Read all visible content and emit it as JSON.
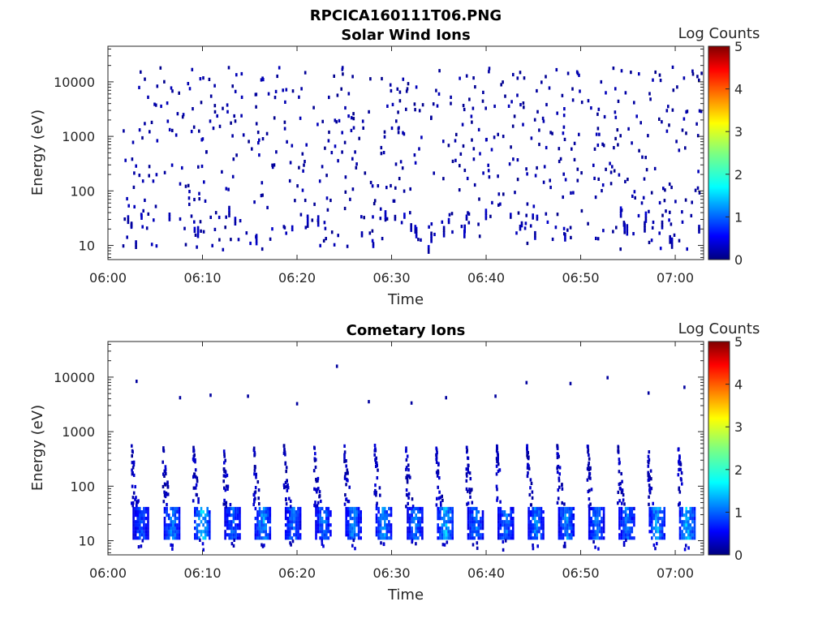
{
  "figure_title": "RPCICA160111T06.PNG",
  "colorbar": {
    "label": "Log Counts",
    "ticks": [
      "0",
      "1",
      "2",
      "3",
      "4",
      "5"
    ],
    "range": [
      0,
      5
    ],
    "colormap": [
      "#00007f",
      "#0000ff",
      "#007fff",
      "#00ffff",
      "#7fff7f",
      "#ffff00",
      "#ff7f00",
      "#ff0000",
      "#7f0000"
    ]
  },
  "chart_data": [
    {
      "type": "heatmap",
      "title": "Solar Wind Ions",
      "xlabel": "Time",
      "ylabel": "Energy (eV)",
      "x_range_min": [
        0,
        63
      ],
      "y_range_ev": [
        5.5,
        45000
      ],
      "y_scale": "log",
      "xticks": [
        "06:00",
        "06:10",
        "06:20",
        "06:30",
        "06:40",
        "06:50",
        "07:00"
      ],
      "xtick_minutes": [
        0,
        10,
        20,
        30,
        40,
        50,
        60
      ],
      "yticks": [
        "10",
        "100",
        "1000",
        "10000"
      ],
      "ytick_values": [
        10,
        100,
        1000,
        10000
      ],
      "data_start_min": 1.5,
      "data_end_min": 62.7,
      "pattern": "sparse scattered low counts (log counts ~0-0.3) across 8 eV - 20000 eV; denser vertical streaks near 10-40 eV",
      "seed": 7
    },
    {
      "type": "heatmap",
      "title": "Cometary Ions",
      "xlabel": "Time",
      "ylabel": "Energy (eV)",
      "x_range_min": [
        0,
        63
      ],
      "y_range_ev": [
        5.5,
        45000
      ],
      "y_scale": "log",
      "xticks": [
        "06:00",
        "06:10",
        "06:20",
        "06:30",
        "06:40",
        "06:50",
        "07:00"
      ],
      "xtick_minutes": [
        0,
        10,
        20,
        30,
        40,
        50,
        60
      ],
      "yticks": [
        "10",
        "100",
        "1000",
        "10000"
      ],
      "ytick_values": [
        10,
        100,
        1000,
        10000
      ],
      "burst_period_min": 3.2,
      "burst_start_min": [
        2.6,
        5.9,
        9.1,
        12.3,
        15.5,
        18.7,
        21.9,
        25.1,
        28.3,
        31.6,
        34.8,
        38.0,
        41.2,
        44.4,
        47.6,
        50.8,
        54.0,
        57.2,
        60.4
      ],
      "burst_peak_log_counts": [
        1.3,
        1.6,
        2.0,
        1.4,
        1.7,
        1.5,
        1.5,
        1.6,
        1.7,
        1.5,
        1.9,
        1.5,
        1.5,
        1.6,
        1.6,
        1.5,
        1.5,
        1.8,
        2.0
      ],
      "burst_energy_ev": [
        12,
        45
      ],
      "burst_tail_max_ev": 600,
      "isolated_high_energy_ev": [
        9000,
        4500,
        5000,
        4800,
        3500,
        17000,
        3800,
        3600,
        4500,
        4800,
        8500,
        8200,
        10500,
        5500,
        7000
      ],
      "seed": 11
    }
  ]
}
